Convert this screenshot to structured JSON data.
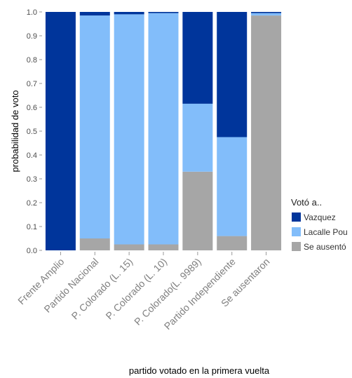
{
  "chart_data": {
    "type": "bar",
    "stacked": true,
    "title": "",
    "xlabel": "partido votado en la primera vuelta",
    "ylabel": "probabilidad de voto",
    "ylim": [
      0,
      1
    ],
    "yticks": [
      "0.0",
      "0.1",
      "0.2",
      "0.3",
      "0.4",
      "0.5",
      "0.6",
      "0.7",
      "0.8",
      "0.9",
      "1.0"
    ],
    "categories": [
      "Frente Amplio",
      "Partido Nacional",
      "P. Colorado (L. 15)",
      "P. Colorado (L. 10)",
      "P. Colorado(L. 9989)",
      "Partido Independiente",
      "Se ausentaron"
    ],
    "series": [
      {
        "name": "Se ausentó",
        "color": "#a6a6a6",
        "values": [
          0.0,
          0.05,
          0.025,
          0.025,
          0.33,
          0.06,
          0.985
        ]
      },
      {
        "name": "Lacalle Pou",
        "color": "#82bdfa",
        "values": [
          0.0,
          0.935,
          0.965,
          0.97,
          0.285,
          0.415,
          0.01
        ]
      },
      {
        "name": "Vazquez",
        "color": "#00359b",
        "values": [
          1.0,
          0.015,
          0.01,
          0.005,
          0.385,
          0.525,
          0.005
        ]
      }
    ],
    "legend": {
      "title": "Votó a..",
      "placement": "right",
      "entries": [
        "Vazquez",
        "Lacalle Pou",
        "Se ausentó"
      ]
    },
    "grid": false
  }
}
